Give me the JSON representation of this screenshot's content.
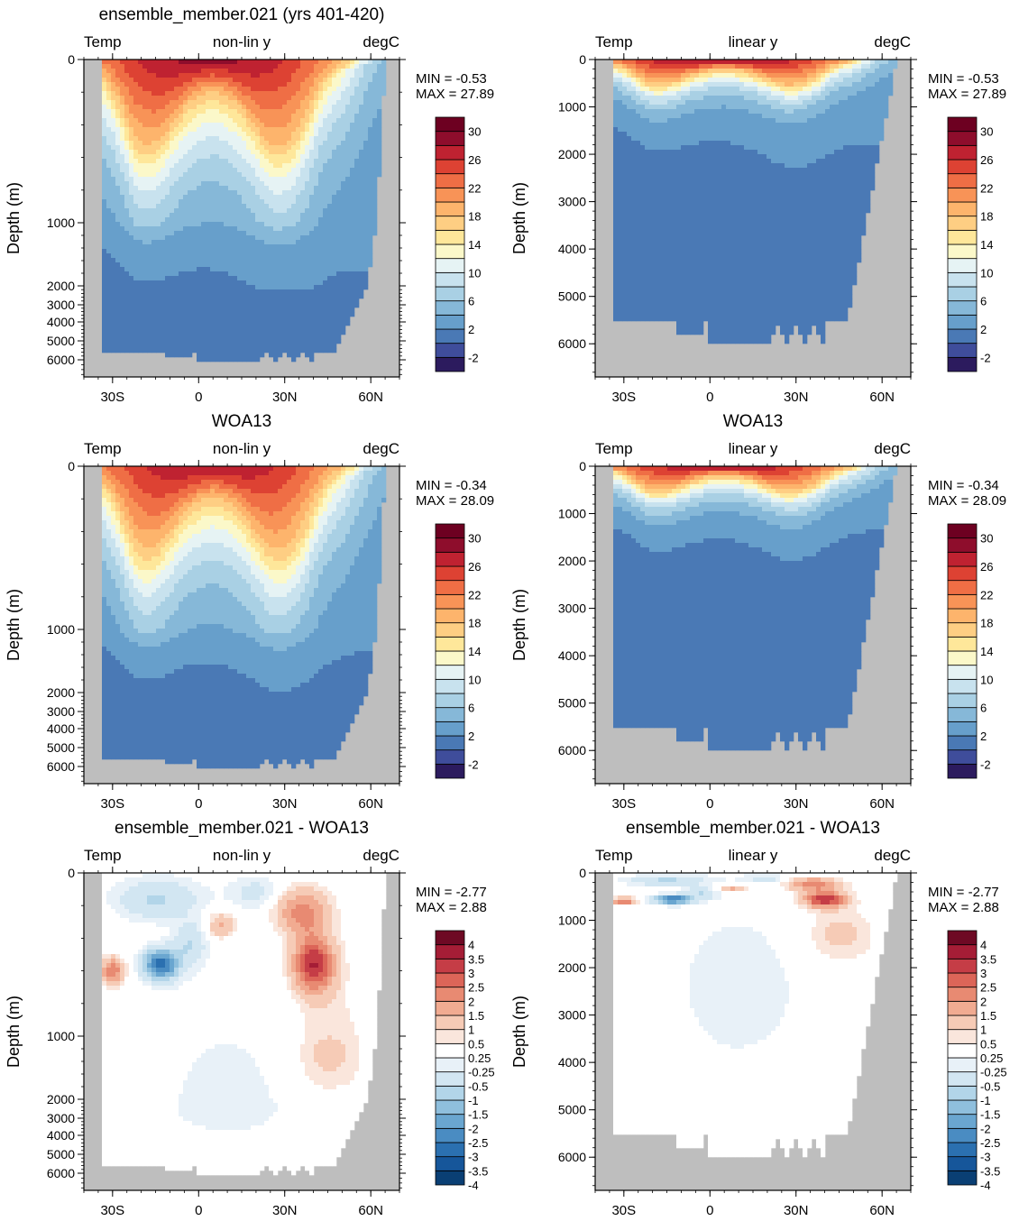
{
  "chart_data": [
    {
      "type": "heatmap",
      "title": "ensemble_member.021 (yrs 401-420)",
      "left_label": "Temp",
      "center_label": "non-lin y",
      "right_label": "degC",
      "ylabel": "Depth (m)",
      "y_scale": "non-linear",
      "y_ticks": [
        "0",
        "1000",
        "2000",
        "3000",
        "4000",
        "5000",
        "6000"
      ],
      "x_ticks": [
        "30S",
        "0",
        "30N",
        "60N"
      ],
      "xlim": [
        -40,
        70
      ],
      "ylim": [
        0,
        6700
      ],
      "min_label": "MIN = -0.53",
      "max_label": "MAX = 27.89",
      "colorbar_labels": [
        "30",
        "26",
        "22",
        "18",
        "14",
        "10",
        "6",
        "2",
        "-2"
      ],
      "colorbar_levels": [
        -2,
        0,
        2,
        4,
        6,
        8,
        10,
        12,
        14,
        16,
        18,
        20,
        22,
        24,
        26,
        28,
        30
      ]
    },
    {
      "type": "heatmap",
      "title": "",
      "left_label": "Temp",
      "center_label": "linear y",
      "right_label": "degC",
      "ylabel": "Depth (m)",
      "y_scale": "linear",
      "y_ticks": [
        "0",
        "1000",
        "2000",
        "3000",
        "4000",
        "5000",
        "6000"
      ],
      "x_ticks": [
        "30S",
        "0",
        "30N",
        "60N"
      ],
      "xlim": [
        -40,
        70
      ],
      "ylim": [
        0,
        6700
      ],
      "min_label": "MIN = -0.53",
      "max_label": "MAX = 27.89",
      "colorbar_labels": [
        "30",
        "26",
        "22",
        "18",
        "14",
        "10",
        "6",
        "2",
        "-2"
      ],
      "colorbar_levels": [
        -2,
        0,
        2,
        4,
        6,
        8,
        10,
        12,
        14,
        16,
        18,
        20,
        22,
        24,
        26,
        28,
        30
      ]
    },
    {
      "type": "heatmap",
      "title": "WOA13",
      "left_label": "Temp",
      "center_label": "non-lin y",
      "right_label": "degC",
      "ylabel": "Depth (m)",
      "y_scale": "non-linear",
      "y_ticks": [
        "0",
        "1000",
        "2000",
        "3000",
        "4000",
        "5000",
        "6000"
      ],
      "x_ticks": [
        "30S",
        "0",
        "30N",
        "60N"
      ],
      "xlim": [
        -40,
        70
      ],
      "ylim": [
        0,
        6700
      ],
      "min_label": "MIN = -0.34",
      "max_label": "MAX = 28.09",
      "colorbar_labels": [
        "30",
        "26",
        "22",
        "18",
        "14",
        "10",
        "6",
        "2",
        "-2"
      ],
      "colorbar_levels": [
        -2,
        0,
        2,
        4,
        6,
        8,
        10,
        12,
        14,
        16,
        18,
        20,
        22,
        24,
        26,
        28,
        30
      ]
    },
    {
      "type": "heatmap",
      "title": "WOA13",
      "left_label": "Temp",
      "center_label": "linear y",
      "right_label": "degC",
      "ylabel": "Depth (m)",
      "y_scale": "linear",
      "y_ticks": [
        "0",
        "1000",
        "2000",
        "3000",
        "4000",
        "5000",
        "6000"
      ],
      "x_ticks": [
        "30S",
        "0",
        "30N",
        "60N"
      ],
      "xlim": [
        -40,
        70
      ],
      "ylim": [
        0,
        6700
      ],
      "min_label": "MIN = -0.34",
      "max_label": "MAX = 28.09",
      "colorbar_labels": [
        "30",
        "26",
        "22",
        "18",
        "14",
        "10",
        "6",
        "2",
        "-2"
      ],
      "colorbar_levels": [
        -2,
        0,
        2,
        4,
        6,
        8,
        10,
        12,
        14,
        16,
        18,
        20,
        22,
        24,
        26,
        28,
        30
      ]
    },
    {
      "type": "heatmap",
      "title": "ensemble_member.021 - WOA13",
      "left_label": "Temp",
      "center_label": "non-lin y",
      "right_label": "degC",
      "ylabel": "Depth (m)",
      "y_scale": "non-linear",
      "y_ticks": [
        "0",
        "1000",
        "2000",
        "3000",
        "4000",
        "5000",
        "6000"
      ],
      "x_ticks": [
        "30S",
        "0",
        "30N",
        "60N"
      ],
      "xlim": [
        -40,
        70
      ],
      "ylim": [
        0,
        6700
      ],
      "min_label": "MIN = -2.77",
      "max_label": "MAX =  2.88",
      "colorbar_labels": [
        "4",
        "3.5",
        "3",
        "2.5",
        "2",
        "1.5",
        "1",
        "0.5",
        "0.25",
        "-0.25",
        "-0.5",
        "-1",
        "-1.5",
        "-2",
        "-2.5",
        "-3",
        "-3.5",
        "-4"
      ]
    },
    {
      "type": "heatmap",
      "title": "ensemble_member.021 - WOA13",
      "left_label": "Temp",
      "center_label": "linear y",
      "right_label": "degC",
      "ylabel": "Depth (m)",
      "y_scale": "linear",
      "y_ticks": [
        "0",
        "1000",
        "2000",
        "3000",
        "4000",
        "5000",
        "6000"
      ],
      "x_ticks": [
        "30S",
        "0",
        "30N",
        "60N"
      ],
      "xlim": [
        -40,
        70
      ],
      "ylim": [
        0,
        6700
      ],
      "min_label": "MIN = -2.77",
      "max_label": "MAX =  2.88",
      "colorbar_labels": [
        "4",
        "3.5",
        "3",
        "2.5",
        "2",
        "1.5",
        "1",
        "0.5",
        "0.25",
        "-0.25",
        "-0.5",
        "-1",
        "-1.5",
        "-2",
        "-2.5",
        "-3",
        "-3.5",
        "-4"
      ]
    }
  ],
  "colors": {
    "land": "#bebebe",
    "temp_palette": [
      "#2c1b5e",
      "#3f4d9b",
      "#4a79b5",
      "#679fcb",
      "#86b8d8",
      "#a9d0e4",
      "#c8e2ee",
      "#e6f3f4",
      "#fbf8c9",
      "#fee79a",
      "#fece83",
      "#fdb46c",
      "#f89357",
      "#ef6e45",
      "#dd4233",
      "#bf2231",
      "#8e0d2c",
      "#6d0021"
    ],
    "diff_palette": [
      "#0a3f74",
      "#16569a",
      "#2b70b0",
      "#4a8cc2",
      "#6aa6d0",
      "#8fbfdd",
      "#b2d5e9",
      "#d2e6f2",
      "#e8f1f8",
      "#ffffff",
      "#fae6dc",
      "#f6cbb6",
      "#f1ab91",
      "#e88a72",
      "#dc6558",
      "#c53d46",
      "#a51d36",
      "#6e0924"
    ]
  }
}
